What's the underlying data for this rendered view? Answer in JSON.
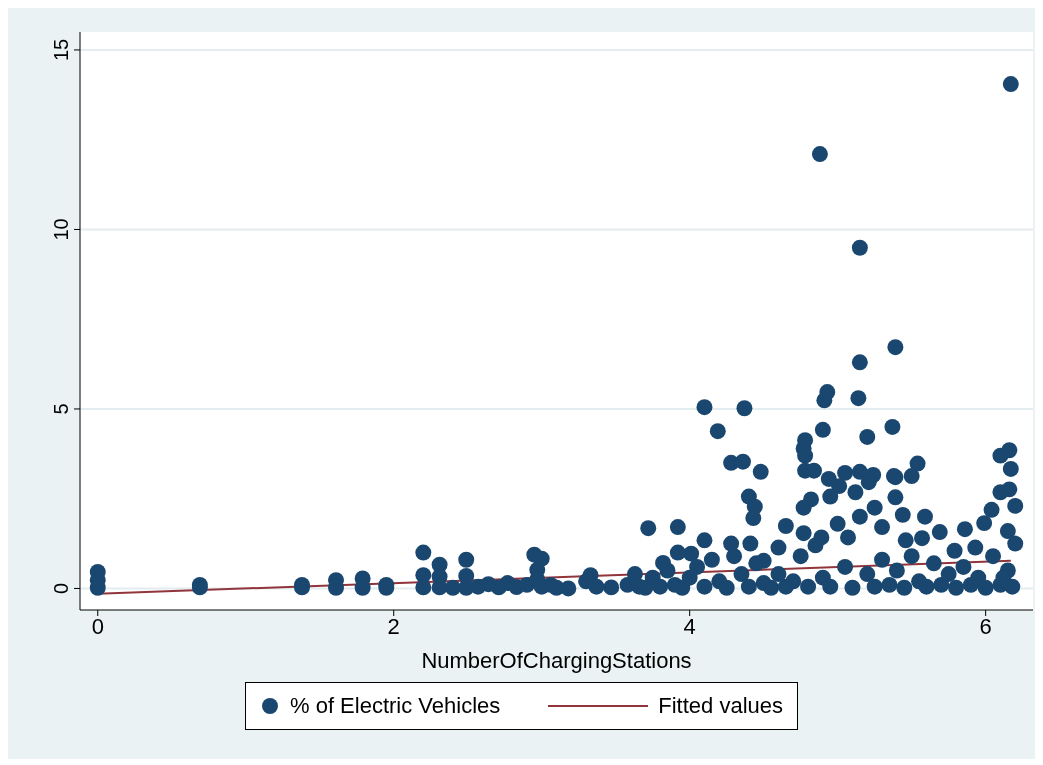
{
  "chart_data": {
    "type": "scatter",
    "xlabel": "NumberOfChargingStations",
    "xlim": [
      -0.12,
      6.32
    ],
    "ylim": [
      -0.6,
      15.5
    ],
    "xticks": [
      0,
      2,
      4,
      6
    ],
    "yticks": [
      0,
      5,
      10,
      15
    ],
    "grid": "y",
    "legend": "bottom",
    "series": [
      {
        "name": "% of Electric Vehicles",
        "marker": "circle",
        "color": "#1a476f",
        "x": [
          0,
          0,
          0,
          0.69,
          0.69,
          1.38,
          1.38,
          1.61,
          1.61,
          1.79,
          1.79,
          1.95,
          1.95,
          2.2,
          2.2,
          2.2,
          2.31,
          2.31,
          2.31,
          2.4,
          2.49,
          2.49,
          2.49,
          2.57,
          2.64,
          2.71,
          2.77,
          2.83,
          2.9,
          2.95,
          3.0,
          2.97,
          2.97,
          3.0,
          3.06,
          3.1,
          3.18,
          3.3,
          3.33,
          3.37,
          3.47,
          3.58,
          3.63,
          3.66,
          6.17,
          4.88,
          5.15,
          5.15,
          5.39,
          4.1,
          4.37,
          4.93,
          4.91,
          4.9,
          5.14,
          5.37,
          4.19,
          4.77,
          4.28,
          4.36,
          4.48,
          5.39,
          4.4,
          4.44,
          4.43,
          3.72,
          3.92,
          4.65,
          4.78,
          4.78,
          4.78,
          4.84,
          5.2,
          5.05,
          5.15,
          5.24,
          5.21,
          5.38,
          5.5,
          5.54,
          5.39,
          5.44,
          5.59,
          6.16,
          6.1,
          6.17,
          6.16,
          6.1,
          6.04,
          5.99,
          5.86,
          5.69,
          5.79,
          4.94,
          4.95,
          4.82,
          4.77,
          5.25,
          5.12,
          5.01,
          5.3,
          4.77,
          4.89,
          5.07,
          4.6,
          4.5,
          4.1,
          3.92,
          4.01,
          3.82,
          4.28,
          4.41,
          5.46,
          5.57,
          5.93,
          6.2,
          3.7,
          3.75,
          3.8,
          3.85,
          3.9,
          3.95,
          4.0,
          4.05,
          4.1,
          4.15,
          4.2,
          4.25,
          4.3,
          4.35,
          4.4,
          4.45,
          4.5,
          4.55,
          4.6,
          4.65,
          4.7,
          4.75,
          4.8,
          4.85,
          4.9,
          4.95,
          5.0,
          5.05,
          5.1,
          5.15,
          5.2,
          5.25,
          5.3,
          5.35,
          5.4,
          5.45,
          5.5,
          5.55,
          5.6,
          5.65,
          5.7,
          5.75,
          5.8,
          5.85,
          5.9,
          5.95,
          6.0,
          6.05,
          6.1,
          6.15,
          6.15,
          6.18,
          6.2,
          6.12
        ],
        "values": [
          0.46,
          0.23,
          0.02,
          0.1,
          0.03,
          0.1,
          0.03,
          0.23,
          0.02,
          0.28,
          0.02,
          0.1,
          0.02,
          1.0,
          0.37,
          0.03,
          0.66,
          0.33,
          0.03,
          0.02,
          0.8,
          0.35,
          0.02,
          0.05,
          0.12,
          0.03,
          0.15,
          0.04,
          0.1,
          0.94,
          0.83,
          0.52,
          0.25,
          0.05,
          0.1,
          0.02,
          0.0,
          0.2,
          0.37,
          0.05,
          0.03,
          0.1,
          0.4,
          0.05,
          14.05,
          12.1,
          9.49,
          6.3,
          6.72,
          5.05,
          5.02,
          5.47,
          5.24,
          4.42,
          5.3,
          4.5,
          4.38,
          3.9,
          3.5,
          3.53,
          3.25,
          3.1,
          2.56,
          2.28,
          1.96,
          1.68,
          1.71,
          1.74,
          4.13,
          3.7,
          3.28,
          3.28,
          4.22,
          3.22,
          3.25,
          3.16,
          2.96,
          3.13,
          3.13,
          3.48,
          2.54,
          2.05,
          2.0,
          3.85,
          3.7,
          3.33,
          2.76,
          2.68,
          2.19,
          1.82,
          1.65,
          1.57,
          1.05,
          3.05,
          2.56,
          2.48,
          2.25,
          2.25,
          2.68,
          2.85,
          1.71,
          1.54,
          1.42,
          1.42,
          1.14,
          0.77,
          1.34,
          1.0,
          0.97,
          0.71,
          1.25,
          1.25,
          1.34,
          1.4,
          1.14,
          1.25,
          0.02,
          0.3,
          0.05,
          0.5,
          0.1,
          0.02,
          0.3,
          0.6,
          0.05,
          0.8,
          0.2,
          0.02,
          0.9,
          0.4,
          0.05,
          0.7,
          0.15,
          0.02,
          0.4,
          0.05,
          0.2,
          0.9,
          0.05,
          1.2,
          0.3,
          0.05,
          1.8,
          0.6,
          0.02,
          2.0,
          0.4,
          0.05,
          0.8,
          0.1,
          0.5,
          0.02,
          0.9,
          0.2,
          0.05,
          0.7,
          0.1,
          0.4,
          0.02,
          0.6,
          0.1,
          0.3,
          0.02,
          0.9,
          0.1,
          0.5,
          1.6,
          0.05,
          2.3,
          0.3
        ]
      },
      {
        "name": "Fitted values",
        "type": "line",
        "color": "#90353b",
        "x": [
          0,
          6.17
        ],
        "values": [
          -0.15,
          0.77
        ]
      }
    ]
  }
}
